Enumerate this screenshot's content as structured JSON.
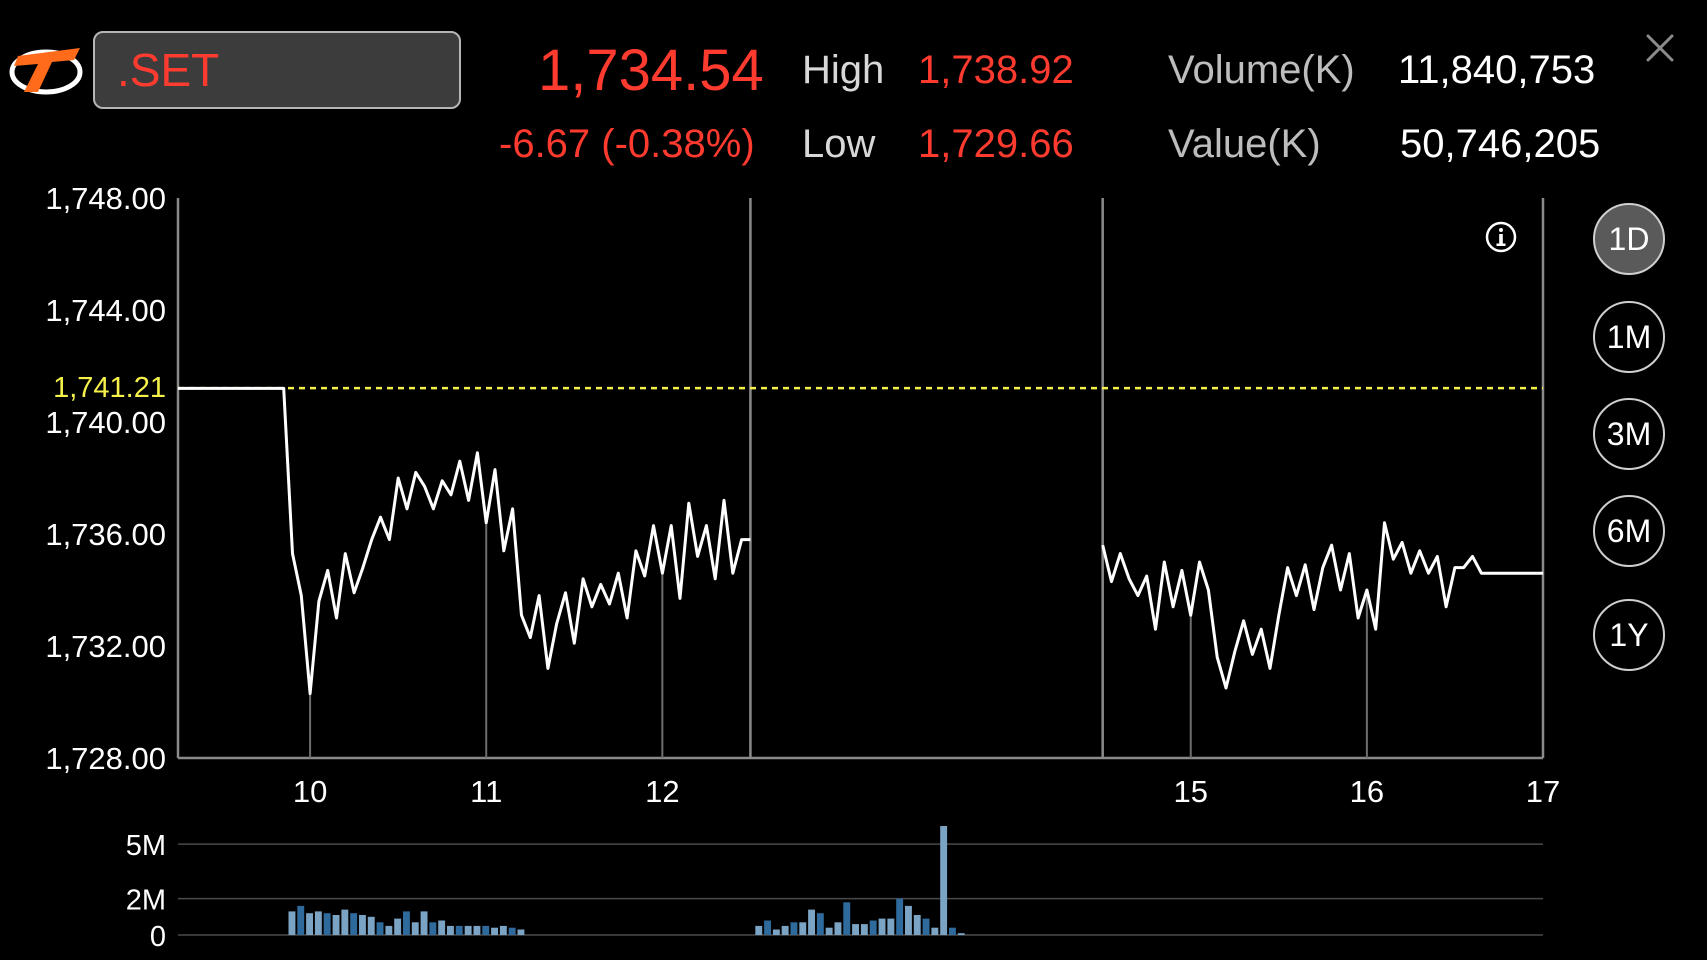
{
  "header": {
    "symbol": ".SET",
    "last_price": "1,734.54",
    "change": "-6.67 (-0.38%)",
    "high_label": "High",
    "high_value": "1,738.92",
    "low_label": "Low",
    "low_value": "1,729.66",
    "volume_label": "Volume(K)",
    "volume_value": "11,840,753",
    "value_label": "Value(K)",
    "value_value": "50,746,205"
  },
  "icons": {
    "logo": "brand-logo-icon",
    "close": "close-icon",
    "info": "info-icon"
  },
  "range_buttons": [
    "1D",
    "1M",
    "3M",
    "6M",
    "1Y"
  ],
  "active_range": "1D",
  "colors": {
    "up_down_red": "#ff3b30",
    "reference_yellow": "#f5f04a",
    "volume_bar_light": "#7ba3c4",
    "volume_bar_dark": "#2e6b9c"
  },
  "chart_data": [
    {
      "type": "line",
      "y_ticks": [
        "1,748.00",
        "1,744.00",
        "1,740.00",
        "1,736.00",
        "1,732.00",
        "1,728.00"
      ],
      "ylim": [
        1728,
        1748
      ],
      "x_ticks": [
        "10",
        "11",
        "12",
        "15",
        "16",
        "17"
      ],
      "x_tick_hours": [
        10,
        11,
        12,
        15,
        16,
        17
      ],
      "xlim": [
        9.25,
        17
      ],
      "session_break": [
        12.5,
        14.5
      ],
      "reference_label": "1,741.21",
      "reference_value": 1741.21,
      "series": [
        {
          "points": [
            [
              9.25,
              1741.2
            ],
            [
              9.85,
              1741.2
            ],
            [
              9.9,
              1735.3
            ],
            [
              9.95,
              1733.8
            ],
            [
              10,
              1730.3
            ],
            [
              10.05,
              1733.6
            ],
            [
              10.1,
              1734.7
            ],
            [
              10.15,
              1733.0
            ],
            [
              10.2,
              1735.3
            ],
            [
              10.25,
              1733.9
            ],
            [
              10.3,
              1734.8
            ],
            [
              10.35,
              1735.8
            ],
            [
              10.4,
              1736.6
            ],
            [
              10.45,
              1735.8
            ],
            [
              10.5,
              1738.0
            ],
            [
              10.55,
              1736.9
            ],
            [
              10.6,
              1738.2
            ],
            [
              10.65,
              1737.7
            ],
            [
              10.7,
              1736.9
            ],
            [
              10.75,
              1737.9
            ],
            [
              10.8,
              1737.4
            ],
            [
              10.85,
              1738.6
            ],
            [
              10.9,
              1737.2
            ],
            [
              10.95,
              1738.9
            ],
            [
              11,
              1736.4
            ],
            [
              11.05,
              1738.3
            ],
            [
              11.1,
              1735.4
            ],
            [
              11.15,
              1736.9
            ],
            [
              11.2,
              1733.1
            ],
            [
              11.25,
              1732.3
            ],
            [
              11.3,
              1733.8
            ],
            [
              11.35,
              1731.2
            ],
            [
              11.4,
              1732.8
            ],
            [
              11.45,
              1733.9
            ],
            [
              11.5,
              1732.1
            ],
            [
              11.55,
              1734.4
            ],
            [
              11.6,
              1733.4
            ],
            [
              11.65,
              1734.2
            ],
            [
              11.7,
              1733.5
            ],
            [
              11.75,
              1734.6
            ],
            [
              11.8,
              1733.0
            ],
            [
              11.85,
              1735.4
            ],
            [
              11.9,
              1734.5
            ],
            [
              11.95,
              1736.3
            ],
            [
              12,
              1734.6
            ],
            [
              12.05,
              1736.3
            ],
            [
              12.1,
              1733.7
            ],
            [
              12.15,
              1737.1
            ],
            [
              12.2,
              1735.2
            ],
            [
              12.25,
              1736.3
            ],
            [
              12.3,
              1734.4
            ],
            [
              12.35,
              1737.2
            ],
            [
              12.4,
              1734.6
            ],
            [
              12.45,
              1735.8
            ],
            [
              12.5,
              1735.8
            ]
          ]
        },
        {
          "points": [
            [
              14.5,
              1735.6
            ],
            [
              14.55,
              1734.3
            ],
            [
              14.6,
              1735.3
            ],
            [
              14.65,
              1734.4
            ],
            [
              14.7,
              1733.8
            ],
            [
              14.75,
              1734.5
            ],
            [
              14.8,
              1732.6
            ],
            [
              14.85,
              1735.0
            ],
            [
              14.9,
              1733.4
            ],
            [
              14.95,
              1734.7
            ],
            [
              15,
              1733.1
            ],
            [
              15.05,
              1735.0
            ],
            [
              15.1,
              1734.0
            ],
            [
              15.15,
              1731.6
            ],
            [
              15.2,
              1730.5
            ],
            [
              15.25,
              1731.8
            ],
            [
              15.3,
              1732.9
            ],
            [
              15.35,
              1731.7
            ],
            [
              15.4,
              1732.6
            ],
            [
              15.45,
              1731.2
            ],
            [
              15.5,
              1733.1
            ],
            [
              15.55,
              1734.8
            ],
            [
              15.6,
              1733.8
            ],
            [
              15.65,
              1734.9
            ],
            [
              15.7,
              1733.3
            ],
            [
              15.75,
              1734.8
            ],
            [
              15.8,
              1735.6
            ],
            [
              15.85,
              1734.0
            ],
            [
              15.9,
              1735.3
            ],
            [
              15.95,
              1733.0
            ],
            [
              16,
              1734.0
            ],
            [
              16.05,
              1732.6
            ],
            [
              16.1,
              1736.4
            ],
            [
              16.15,
              1735.1
            ],
            [
              16.2,
              1735.7
            ],
            [
              16.25,
              1734.6
            ],
            [
              16.3,
              1735.4
            ],
            [
              16.35,
              1734.6
            ],
            [
              16.4,
              1735.2
            ],
            [
              16.45,
              1733.4
            ],
            [
              16.5,
              1734.8
            ],
            [
              16.55,
              1734.8
            ],
            [
              16.6,
              1735.2
            ],
            [
              16.65,
              1734.6
            ],
            [
              16.7,
              1734.6
            ],
            [
              17,
              1734.6
            ]
          ]
        }
      ]
    },
    {
      "type": "bar",
      "y_ticks": [
        "5M",
        "2M",
        "0"
      ],
      "y_tick_values": [
        5,
        2,
        0
      ],
      "ylim": [
        0,
        6
      ],
      "xlim": [
        9.25,
        17
      ],
      "bar_width_hours": 0.045,
      "bars": [
        [
          9.9,
          1.3
        ],
        [
          9.95,
          1.6
        ],
        [
          10,
          1.2
        ],
        [
          10.05,
          1.3
        ],
        [
          10.1,
          1.2
        ],
        [
          10.15,
          1.1
        ],
        [
          10.2,
          1.4
        ],
        [
          10.25,
          1.2
        ],
        [
          10.3,
          1.1
        ],
        [
          10.35,
          1.0
        ],
        [
          10.4,
          0.7
        ],
        [
          10.45,
          0.5
        ],
        [
          10.5,
          0.9
        ],
        [
          10.55,
          1.3
        ],
        [
          10.6,
          0.7
        ],
        [
          10.65,
          1.3
        ],
        [
          10.7,
          0.7
        ],
        [
          10.75,
          0.8
        ],
        [
          10.8,
          0.5
        ],
        [
          10.85,
          0.5
        ],
        [
          10.9,
          0.5
        ],
        [
          10.95,
          0.5
        ],
        [
          11,
          0.5
        ],
        [
          11.05,
          0.4
        ],
        [
          11.1,
          0.5
        ],
        [
          11.15,
          0.4
        ],
        [
          11.2,
          0.3
        ],
        [
          12.55,
          0.5
        ],
        [
          12.6,
          0.8
        ],
        [
          12.65,
          0.3
        ],
        [
          12.7,
          0.5
        ],
        [
          12.75,
          0.7
        ],
        [
          12.8,
          0.7
        ],
        [
          12.85,
          1.4
        ],
        [
          12.9,
          1.2
        ],
        [
          12.95,
          0.4
        ],
        [
          13,
          0.7
        ],
        [
          13.05,
          1.8
        ],
        [
          13.1,
          0.6
        ],
        [
          13.15,
          0.6
        ],
        [
          13.2,
          0.8
        ],
        [
          13.25,
          0.9
        ],
        [
          13.3,
          0.9
        ],
        [
          13.35,
          2.0
        ],
        [
          13.4,
          1.6
        ],
        [
          13.45,
          1.1
        ],
        [
          13.5,
          0.9
        ],
        [
          13.55,
          0.4
        ],
        [
          13.6,
          6.0
        ],
        [
          13.65,
          0.4
        ],
        [
          13.7,
          0.1
        ]
      ]
    }
  ]
}
